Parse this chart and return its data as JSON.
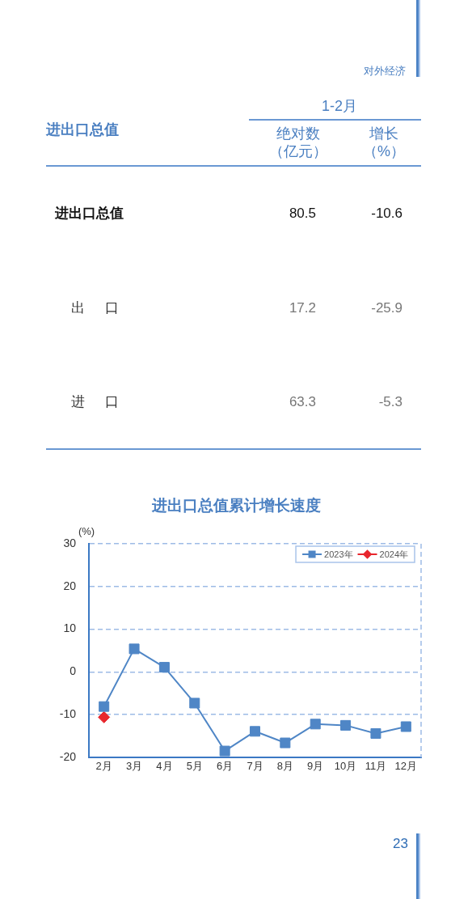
{
  "chart_data": [
    {
      "type": "other",
      "ylabel": "进出口总值",
      "legend_title": "1-2月",
      "categories": [
        "进出口总值",
        "出 口",
        "进 口"
      ],
      "series": [
        {
          "name": "绝对数（亿元）",
          "values": [
            80.5,
            17.2,
            63.3
          ]
        },
        {
          "name": "增长（%）",
          "values": [
            -10.6,
            -25.9,
            -5.3
          ]
        }
      ],
      "data_labels": true,
      "annotations": [
        "对外经济"
      ]
    },
    {
      "type": "line",
      "title": "进出口总值累计增长速度",
      "ylabel": "(%)",
      "categories": [
        "2月",
        "3月",
        "4月",
        "5月",
        "6月",
        "7月",
        "8月",
        "9月",
        "10月",
        "11月",
        "12月"
      ],
      "series": [
        {
          "name": "2023年",
          "color": "#4f86c6",
          "marker": "square",
          "values": [
            -8.1,
            5.4,
            1.1,
            -7.3,
            -18.5,
            -13.9,
            -16.6,
            -12.2,
            -12.5,
            -14.4,
            -12.8
          ]
        },
        {
          "name": "2024年",
          "color": "#e8262d",
          "marker": "diamond",
          "values": [
            -10.6,
            null,
            null,
            null,
            null,
            null,
            null,
            null,
            null,
            null,
            null
          ]
        }
      ],
      "ylim": [
        -20,
        30
      ],
      "yticks": [
        -20,
        -10,
        0,
        10,
        20,
        30
      ],
      "grid": "y",
      "legend": "top right",
      "annotations": [
        "23"
      ]
    }
  ]
}
